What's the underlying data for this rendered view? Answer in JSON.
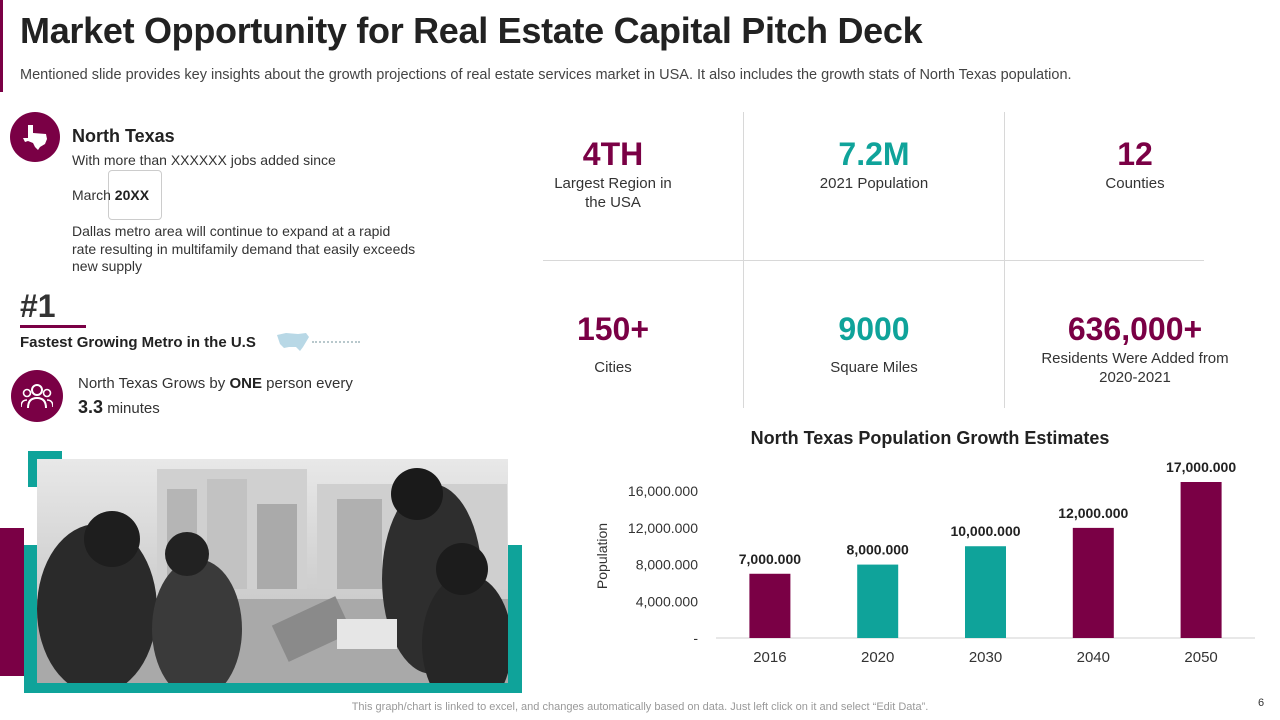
{
  "header": {
    "title": "Market Opportunity for Real Estate Capital Pitch Deck",
    "subtitle": "Mentioned slide provides key insights about the growth projections of real estate services market in USA. It also includes the growth stats of North Texas population."
  },
  "north_texas": {
    "heading": "North Texas",
    "jobs_text": "With more than XXXXXX  jobs added since",
    "since_month": "March ",
    "since_year": "20XX",
    "paragraph": "Dallas metro area will continue to expand at a rapid rate resulting in multifamily demand that easily exceeds new supply"
  },
  "ranking": {
    "rank": "#1",
    "label": "Fastest Growing Metro in the U.S"
  },
  "growth": {
    "text_pre": "North Texas Grows by ",
    "text_bold": "ONE",
    "text_post": " person every",
    "number": "3.3",
    "unit": " minutes"
  },
  "stats": [
    {
      "value": "4TH",
      "label": "Largest Region in the USA",
      "color": "#7a0045"
    },
    {
      "value": "7.2M",
      "label": "2021 Population",
      "color": "#0fa39a"
    },
    {
      "value": "12",
      "label": "Counties",
      "color": "#7a0045"
    },
    {
      "value": "150+",
      "label": "Cities",
      "color": "#7a0045"
    },
    {
      "value": "9000",
      "label": "Square Miles",
      "color": "#0fa39a"
    },
    {
      "value": "636,000+",
      "label": "Residents Were Added from 2020-2021",
      "color": "#7a0045"
    }
  ],
  "chart_data": {
    "type": "bar",
    "title": "North Texas Population Growth Estimates",
    "xlabel": "",
    "ylabel": "Population",
    "categories": [
      "2016",
      "2020",
      "2030",
      "2040",
      "2050"
    ],
    "values": [
      7000000,
      8000000,
      10000000,
      12000000,
      17000000
    ],
    "value_labels": [
      "7,000.000",
      "8,000.000",
      "10,000.000",
      "12,000.000",
      "17,000.000"
    ],
    "bar_colors": [
      "#7a0045",
      "#0fa39a",
      "#0fa39a",
      "#7a0045",
      "#7a0045"
    ],
    "y_ticks": [
      0,
      4000000,
      8000000,
      12000000,
      16000000
    ],
    "y_tick_labels": [
      "-",
      "4,000.000",
      "8,000.000",
      "12,000.000",
      "16,000.000"
    ],
    "ylim": [
      0,
      17000000
    ],
    "grid": false,
    "legend": "none"
  },
  "footer": {
    "note": "This graph/chart is linked to excel, and changes automatically based on data. Just left click on it and select “Edit Data”.",
    "page": "6"
  },
  "colors": {
    "maroon": "#7a0045",
    "teal": "#0fa39a"
  }
}
